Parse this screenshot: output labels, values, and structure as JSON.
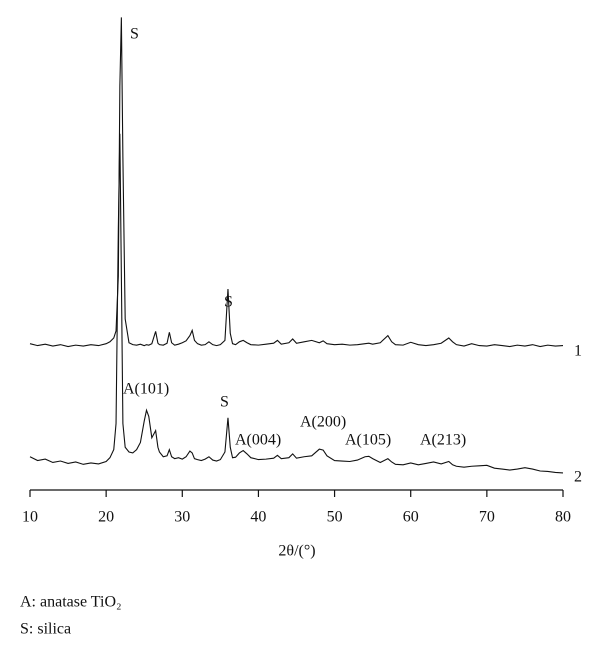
{
  "chart_data": {
    "type": "line",
    "x_label": "2θ/(°)",
    "x": [
      10,
      11,
      12,
      13,
      14,
      15,
      16,
      17,
      18,
      19,
      20,
      20.5,
      21,
      21.3,
      21.6,
      21.8,
      22,
      22.2,
      22.5,
      23,
      23.5,
      24,
      24.5,
      25,
      25.3,
      25.6,
      26,
      26.5,
      26.8,
      27,
      27.5,
      28,
      28.3,
      28.6,
      29,
      29.5,
      30,
      30.5,
      31,
      31.3,
      31.6,
      32,
      32.5,
      33,
      33.5,
      34,
      34.5,
      35,
      35.6,
      36,
      36.3,
      36.6,
      37,
      37.5,
      38,
      38.5,
      39,
      40,
      41,
      42,
      42.5,
      43,
      44,
      44.5,
      45,
      46,
      47,
      48,
      48.5,
      49,
      50,
      51,
      52,
      53,
      54,
      54.5,
      55,
      56,
      57,
      57.5,
      58,
      59,
      60,
      61,
      62,
      63,
      64,
      65,
      65.5,
      66,
      67,
      68,
      69,
      70,
      71,
      72,
      73,
      74,
      75,
      76,
      77,
      78,
      79,
      80
    ],
    "series": [
      {
        "name": "1",
        "color": "#111111",
        "values": [
          30.8,
          30.4,
          30.7,
          30.3,
          30.6,
          30.2,
          30.5,
          30.3,
          30.6,
          30.4,
          30.8,
          31.2,
          32.0,
          33.5,
          45,
          85,
          99.5,
          70,
          36,
          31.0,
          30.6,
          30.5,
          30.7,
          30.4,
          30.6,
          30.5,
          30.8,
          33.4,
          30.9,
          30.6,
          30.5,
          30.9,
          33.2,
          31.0,
          30.5,
          30.7,
          31.0,
          31.4,
          32.5,
          33.6,
          31.5,
          30.8,
          30.5,
          30.6,
          31.2,
          30.6,
          30.4,
          30.6,
          31.5,
          42.3,
          33,
          30.8,
          30.6,
          31.2,
          31.5,
          31.0,
          30.6,
          30.5,
          30.7,
          30.9,
          31.5,
          30.7,
          31.0,
          31.8,
          30.9,
          31.2,
          31.5,
          31.0,
          31.4,
          30.8,
          30.6,
          30.7,
          30.5,
          30.6,
          30.8,
          30.9,
          30.7,
          31.0,
          32.5,
          31.2,
          30.6,
          30.5,
          31.1,
          30.6,
          30.4,
          30.6,
          30.9,
          32.0,
          31.2,
          30.6,
          30.3,
          30.8,
          30.4,
          30.3,
          30.6,
          30.4,
          30.2,
          30.5,
          30.3,
          30.6,
          30.2,
          30.5,
          30.3,
          30.4
        ]
      },
      {
        "name": "2",
        "color": "#111111",
        "values": [
          7.0,
          6.2,
          6.5,
          5.8,
          6.1,
          5.6,
          5.9,
          5.4,
          5.7,
          5.5,
          6.0,
          6.8,
          8.5,
          14,
          55,
          75,
          45,
          14,
          9,
          8,
          7.8,
          8.5,
          10,
          14.5,
          16.8,
          15.5,
          11,
          12.5,
          9,
          8,
          7,
          7.2,
          8.5,
          7.0,
          6.6,
          6.8,
          6.5,
          7,
          8.2,
          7.8,
          6.6,
          6.4,
          6.2,
          6.5,
          7.0,
          6.3,
          6.1,
          6.4,
          8,
          15.2,
          9,
          6.8,
          6.9,
          7.8,
          8.3,
          7.6,
          6.8,
          6.4,
          6.5,
          6.7,
          7.3,
          6.6,
          6.8,
          7.6,
          6.7,
          7.0,
          7.2,
          8.6,
          8.4,
          7.2,
          6.2,
          6.1,
          6.0,
          6.3,
          7.0,
          7.1,
          6.6,
          5.8,
          6.6,
          5.9,
          5.4,
          5.3,
          5.7,
          5.3,
          5.6,
          5.9,
          5.5,
          6.0,
          5.3,
          5.0,
          4.8,
          5.0,
          5.1,
          5.2,
          4.6,
          4.4,
          4.2,
          4.4,
          4.7,
          4.4,
          4.0,
          3.9,
          3.7,
          3.6
        ]
      }
    ],
    "xlim": [
      10,
      80
    ],
    "xticks": [
      10,
      20,
      30,
      40,
      50,
      60,
      70,
      80
    ],
    "ylim": [
      0,
      100
    ],
    "annotations": [
      "S",
      "S",
      "A(101)",
      "S",
      "A(004)",
      "A(200)",
      "A(105)",
      "A(213)"
    ],
    "notes": [
      "A: anatase TiO₂",
      "S: silica"
    ]
  }
}
